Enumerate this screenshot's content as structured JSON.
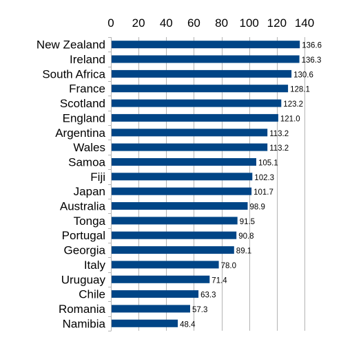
{
  "colors": {
    "bar": "#004586",
    "grid": "#b3b3b3",
    "background": "#ffffff"
  },
  "chart_data": {
    "type": "bar",
    "orientation": "horizontal",
    "title": "",
    "xlabel": "",
    "ylabel": "",
    "xlim": [
      0,
      140
    ],
    "x_ticks": [
      0,
      20,
      40,
      60,
      80,
      100,
      120,
      140
    ],
    "x_axis_position": "top",
    "grid": true,
    "categories": [
      "New Zealand",
      "Ireland",
      "South Africa",
      "France",
      "Scotland",
      "England",
      "Argentina",
      "Wales",
      "Samoa",
      "Fiji",
      "Japan",
      "Australia",
      "Tonga",
      "Portugal",
      "Georgia",
      "Italy",
      "Uruguay",
      "Chile",
      "Romania",
      "Namibia"
    ],
    "values": [
      136.6,
      136.3,
      130.6,
      128.1,
      123.2,
      121.0,
      113.2,
      113.2,
      105.1,
      102.3,
      101.7,
      98.9,
      91.5,
      90.8,
      89.1,
      78.0,
      71.4,
      63.3,
      57.3,
      48.4
    ],
    "data_labels": [
      "136.6",
      "136.3",
      "130.6",
      "128.1",
      "123.2",
      "121.0",
      "113.2",
      "113.2",
      "105.1",
      "102.3",
      "101.7",
      "98.9",
      "91.5",
      "90.8",
      "89.1",
      "78.0",
      "71.4",
      "63.3",
      "57.3",
      "48.4"
    ]
  }
}
